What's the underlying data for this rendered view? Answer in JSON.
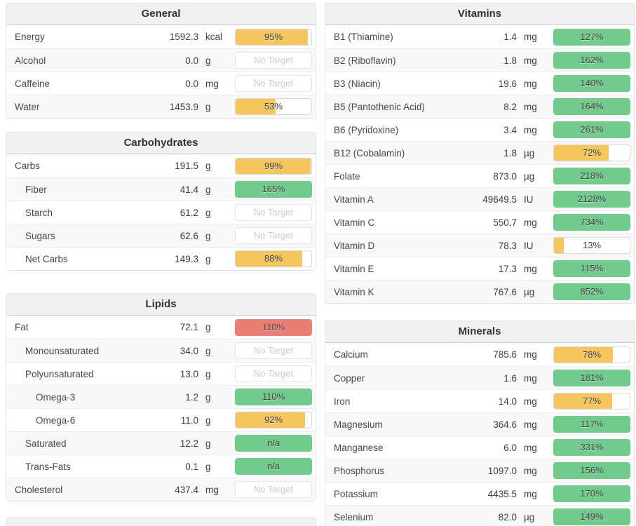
{
  "colors": {
    "green": "#72ca8c",
    "amber": "#f5c55e",
    "red": "#e97f72"
  },
  "panels": {
    "left": [
      {
        "title": "General",
        "rows": [
          {
            "label": "Energy",
            "value": "1592.3",
            "unit": "kcal",
            "indent": 0,
            "bar": {
              "kind": "pct",
              "color": "amber",
              "label": "95%",
              "fill": 95
            }
          },
          {
            "label": "Alcohol",
            "value": "0.0",
            "unit": "g",
            "indent": 0,
            "bar": {
              "kind": "none",
              "label": "No Target"
            }
          },
          {
            "label": "Caffeine",
            "value": "0.0",
            "unit": "mg",
            "indent": 0,
            "bar": {
              "kind": "none",
              "label": "No Target"
            }
          },
          {
            "label": "Water",
            "value": "1453.9",
            "unit": "g",
            "indent": 0,
            "bar": {
              "kind": "pct",
              "color": "amber",
              "label": "53%",
              "fill": 53
            }
          }
        ]
      },
      {
        "title": "Carbohydrates",
        "rows": [
          {
            "label": "Carbs",
            "value": "191.5",
            "unit": "g",
            "indent": 0,
            "bar": {
              "kind": "pct",
              "color": "amber",
              "label": "99%",
              "fill": 99
            }
          },
          {
            "label": "Fiber",
            "value": "41.4",
            "unit": "g",
            "indent": 1,
            "bar": {
              "kind": "pct",
              "color": "green",
              "label": "165%",
              "fill": 100
            }
          },
          {
            "label": "Starch",
            "value": "61.2",
            "unit": "g",
            "indent": 1,
            "bar": {
              "kind": "none",
              "label": "No Target"
            }
          },
          {
            "label": "Sugars",
            "value": "62.6",
            "unit": "g",
            "indent": 1,
            "bar": {
              "kind": "none",
              "label": "No Target"
            }
          },
          {
            "label": "Net Carbs",
            "value": "149.3",
            "unit": "g",
            "indent": 1,
            "bar": {
              "kind": "pct",
              "color": "amber",
              "label": "88%",
              "fill": 88
            }
          }
        ]
      },
      {
        "title": "Lipids",
        "rows": [
          {
            "label": "Fat",
            "value": "72.1",
            "unit": "g",
            "indent": 0,
            "bar": {
              "kind": "pct",
              "color": "red",
              "label": "110%",
              "fill": 100
            }
          },
          {
            "label": "Monounsaturated",
            "value": "34.0",
            "unit": "g",
            "indent": 1,
            "bar": {
              "kind": "none",
              "label": "No Target"
            }
          },
          {
            "label": "Polyunsaturated",
            "value": "13.0",
            "unit": "g",
            "indent": 1,
            "bar": {
              "kind": "none",
              "label": "No Target"
            }
          },
          {
            "label": "Omega-3",
            "value": "1.2",
            "unit": "g",
            "indent": 2,
            "bar": {
              "kind": "pct",
              "color": "green",
              "label": "110%",
              "fill": 100
            }
          },
          {
            "label": "Omega-6",
            "value": "11.0",
            "unit": "g",
            "indent": 2,
            "bar": {
              "kind": "pct",
              "color": "amber",
              "label": "92%",
              "fill": 92
            }
          },
          {
            "label": "Saturated",
            "value": "12.2",
            "unit": "g",
            "indent": 1,
            "bar": {
              "kind": "pct",
              "color": "green",
              "label": "n/a",
              "fill": 100
            }
          },
          {
            "label": "Trans-Fats",
            "value": "0.1",
            "unit": "g",
            "indent": 1,
            "bar": {
              "kind": "pct",
              "color": "green",
              "label": "n/a",
              "fill": 100
            }
          },
          {
            "label": "Cholesterol",
            "value": "437.4",
            "unit": "mg",
            "indent": 0,
            "bar": {
              "kind": "none",
              "label": "No Target"
            }
          }
        ]
      },
      {
        "title": "",
        "partial": true,
        "rows": []
      }
    ],
    "right": [
      {
        "title": "Vitamins",
        "rows": [
          {
            "label": "B1 (Thiamine)",
            "value": "1.4",
            "unit": "mg",
            "indent": 0,
            "bar": {
              "kind": "pct",
              "color": "green",
              "label": "127%",
              "fill": 100
            }
          },
          {
            "label": "B2 (Riboflavin)",
            "value": "1.8",
            "unit": "mg",
            "indent": 0,
            "bar": {
              "kind": "pct",
              "color": "green",
              "label": "162%",
              "fill": 100
            }
          },
          {
            "label": "B3 (Niacin)",
            "value": "19.6",
            "unit": "mg",
            "indent": 0,
            "bar": {
              "kind": "pct",
              "color": "green",
              "label": "140%",
              "fill": 100
            }
          },
          {
            "label": "B5 (Pantothenic Acid)",
            "value": "8.2",
            "unit": "mg",
            "indent": 0,
            "bar": {
              "kind": "pct",
              "color": "green",
              "label": "164%",
              "fill": 100
            }
          },
          {
            "label": "B6 (Pyridoxine)",
            "value": "3.4",
            "unit": "mg",
            "indent": 0,
            "bar": {
              "kind": "pct",
              "color": "green",
              "label": "261%",
              "fill": 100
            }
          },
          {
            "label": "B12 (Cobalamin)",
            "value": "1.8",
            "unit": "µg",
            "indent": 0,
            "bar": {
              "kind": "pct",
              "color": "amber",
              "label": "72%",
              "fill": 72
            }
          },
          {
            "label": "Folate",
            "value": "873.0",
            "unit": "µg",
            "indent": 0,
            "bar": {
              "kind": "pct",
              "color": "green",
              "label": "218%",
              "fill": 100
            }
          },
          {
            "label": "Vitamin A",
            "value": "49649.5",
            "unit": "IU",
            "indent": 0,
            "bar": {
              "kind": "pct",
              "color": "green",
              "label": "2128%",
              "fill": 100
            }
          },
          {
            "label": "Vitamin C",
            "value": "550.7",
            "unit": "mg",
            "indent": 0,
            "bar": {
              "kind": "pct",
              "color": "green",
              "label": "734%",
              "fill": 100
            }
          },
          {
            "label": "Vitamin D",
            "value": "78.3",
            "unit": "IU",
            "indent": 0,
            "bar": {
              "kind": "pct",
              "color": "amber",
              "label": "13%",
              "fill": 13
            }
          },
          {
            "label": "Vitamin E",
            "value": "17.3",
            "unit": "mg",
            "indent": 0,
            "bar": {
              "kind": "pct",
              "color": "green",
              "label": "115%",
              "fill": 100
            }
          },
          {
            "label": "Vitamin K",
            "value": "767.6",
            "unit": "µg",
            "indent": 0,
            "bar": {
              "kind": "pct",
              "color": "green",
              "label": "852%",
              "fill": 100
            }
          }
        ]
      },
      {
        "title": "Minerals",
        "rows": [
          {
            "label": "Calcium",
            "value": "785.6",
            "unit": "mg",
            "indent": 0,
            "bar": {
              "kind": "pct",
              "color": "amber",
              "label": "78%",
              "fill": 78
            }
          },
          {
            "label": "Copper",
            "value": "1.6",
            "unit": "mg",
            "indent": 0,
            "bar": {
              "kind": "pct",
              "color": "green",
              "label": "181%",
              "fill": 100
            }
          },
          {
            "label": "Iron",
            "value": "14.0",
            "unit": "mg",
            "indent": 0,
            "bar": {
              "kind": "pct",
              "color": "amber",
              "label": "77%",
              "fill": 77
            }
          },
          {
            "label": "Magnesium",
            "value": "364.6",
            "unit": "mg",
            "indent": 0,
            "bar": {
              "kind": "pct",
              "color": "green",
              "label": "117%",
              "fill": 100
            }
          },
          {
            "label": "Manganese",
            "value": "6.0",
            "unit": "mg",
            "indent": 0,
            "bar": {
              "kind": "pct",
              "color": "green",
              "label": "331%",
              "fill": 100
            }
          },
          {
            "label": "Phosphorus",
            "value": "1097.0",
            "unit": "mg",
            "indent": 0,
            "bar": {
              "kind": "pct",
              "color": "green",
              "label": "156%",
              "fill": 100
            }
          },
          {
            "label": "Potassium",
            "value": "4435.5",
            "unit": "mg",
            "indent": 0,
            "bar": {
              "kind": "pct",
              "color": "green",
              "label": "170%",
              "fill": 100
            }
          },
          {
            "label": "Selenium",
            "value": "82.0",
            "unit": "µg",
            "indent": 0,
            "bar": {
              "kind": "pct",
              "color": "green",
              "label": "149%",
              "fill": 100
            }
          }
        ]
      }
    ]
  }
}
